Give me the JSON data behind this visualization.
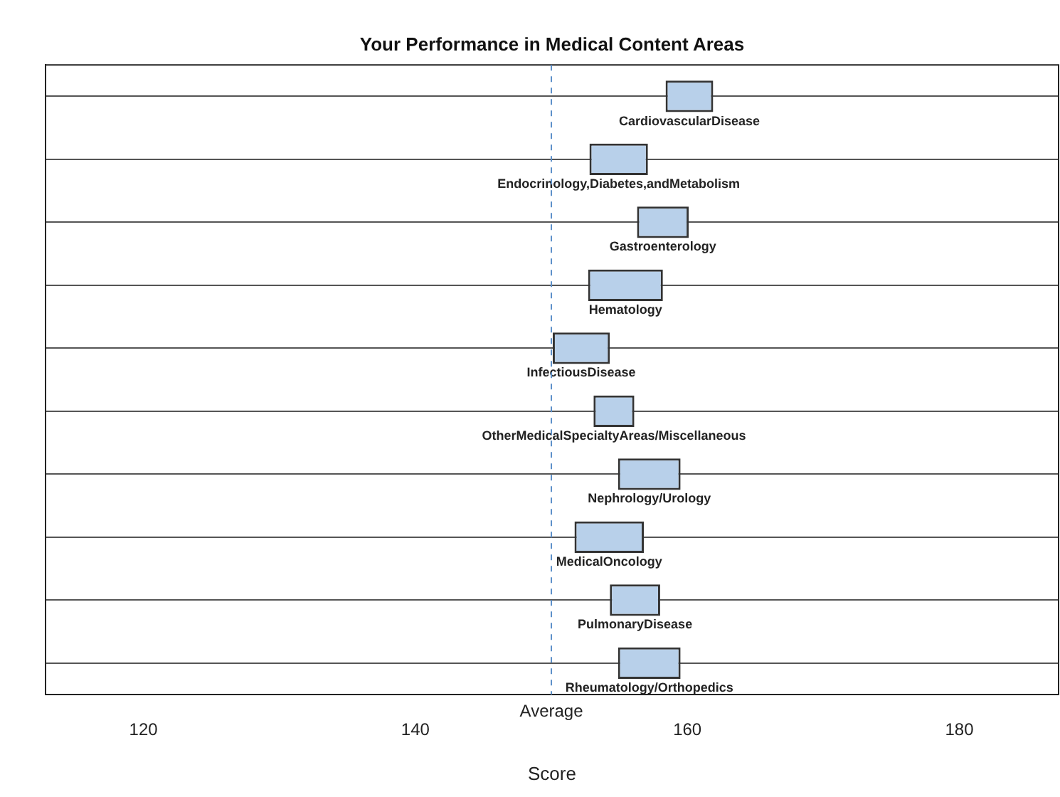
{
  "chart_data": {
    "type": "bar",
    "orientation": "horizontal",
    "title": "Your Performance in Medical Content Areas",
    "xlabel": "Score",
    "categories": [
      "CardiovascularDisease",
      "Endocrinology,Diabetes,andMetabolism",
      "Gastroenterology",
      "Hematology",
      "InfectiousDisease",
      "OtherMedicalSpecialtyAreas/Miscellaneous",
      "Nephrology/Urology",
      "MedicalOncology",
      "PulmonaryDisease",
      "Rheumatology/Orthopedics"
    ],
    "base": [
      158.4,
      152.8,
      156.3,
      152.7,
      150.1,
      153.1,
      154.9,
      151.7,
      154.3,
      154.9
    ],
    "values": [
      3.5,
      4.3,
      3.8,
      5.5,
      4.2,
      3.0,
      4.6,
      5.1,
      3.7,
      4.6
    ],
    "color": "#b8d0ea",
    "xlim": [
      112.8,
      187.3
    ],
    "xticks": [
      120,
      140,
      160,
      180
    ],
    "ref_lines": [
      {
        "axis": "x",
        "value": 150,
        "label": "Average",
        "color": "#5b8fc9",
        "line_style": "dashed"
      }
    ],
    "grid": "y",
    "legend": false
  }
}
